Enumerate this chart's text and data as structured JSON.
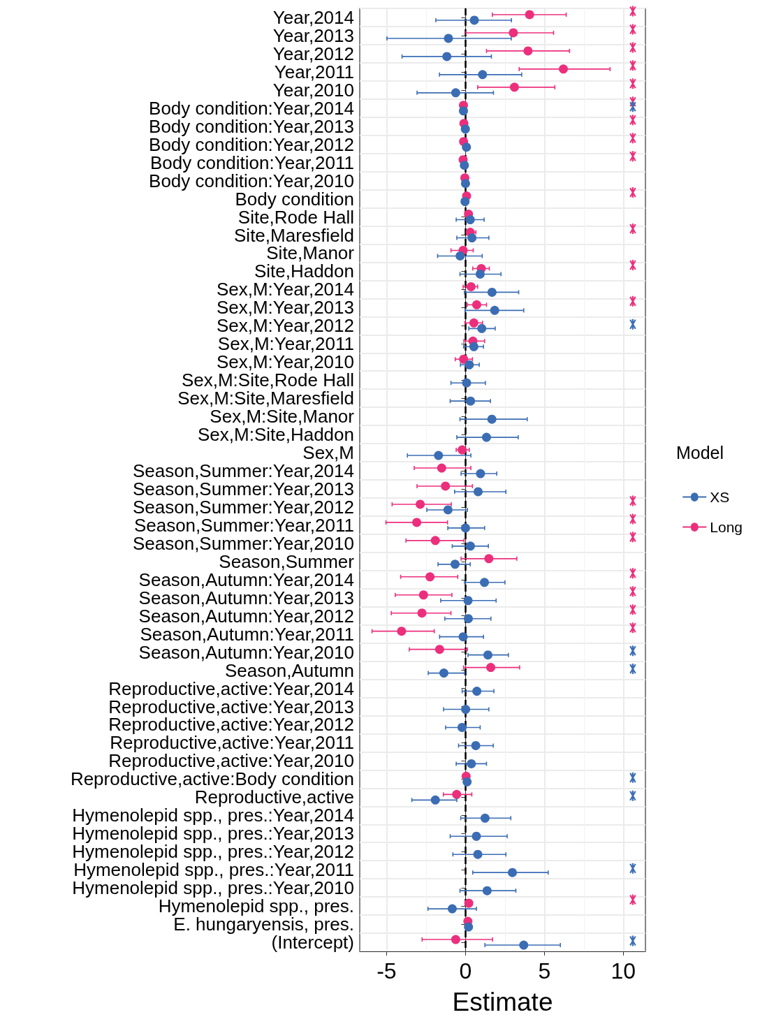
{
  "chart_data": {
    "type": "scatter",
    "orientation": "horizontal",
    "xlabel": "Estimate",
    "legend_title": "Model",
    "legend": "right",
    "grid": true,
    "marker": "circle",
    "xlim": [
      -6.7,
      11.4
    ],
    "xticks": [
      -5,
      0,
      5,
      10
    ],
    "ref_lines": [
      {
        "axis": "x",
        "value": 0,
        "color": "#000000",
        "line_style": "dashed"
      }
    ],
    "categories": [
      "Year,2014",
      "Year,2013",
      "Year,2012",
      "Year,2011",
      "Year,2010",
      "Body condition:Year,2014",
      "Body condition:Year,2013",
      "Body condition:Year,2012",
      "Body condition:Year,2011",
      "Body condition:Year,2010",
      "Body condition",
      "Site,Rode Hall",
      "Site,Maresfield",
      "Site,Manor",
      "Site,Haddon",
      "Sex,M:Year,2014",
      "Sex,M:Year,2013",
      "Sex,M:Year,2012",
      "Sex,M:Year,2011",
      "Sex,M:Year,2010",
      "Sex,M:Site,Rode Hall",
      "Sex,M:Site,Maresfield",
      "Sex,M:Site,Manor",
      "Sex,M:Site,Haddon",
      "Sex,M",
      "Season,Summer:Year,2014",
      "Season,Summer:Year,2013",
      "Season,Summer:Year,2012",
      "Season,Summer:Year,2011",
      "Season,Summer:Year,2010",
      "Season,Summer",
      "Season,Autumn:Year,2014",
      "Season,Autumn:Year,2013",
      "Season,Autumn:Year,2012",
      "Season,Autumn:Year,2011",
      "Season,Autumn:Year,2010",
      "Season,Autumn",
      "Reproductive,active:Year,2014",
      "Reproductive,active:Year,2013",
      "Reproductive,active:Year,2012",
      "Reproductive,active:Year,2011",
      "Reproductive,active:Year,2010",
      "Reproductive,active:Body condition",
      "Reproductive,active",
      "Hymenolepid spp., pres.:Year,2014",
      "Hymenolepid spp., pres.:Year,2013",
      "Hymenolepid spp., pres.:Year,2012",
      "Hymenolepid spp., pres.:Year,2011",
      "Hymenolepid spp., pres.:Year,2010",
      "Hymenolepid spp., pres.",
      "E. hungaryensis, pres.",
      "(Intercept)"
    ],
    "series": [
      {
        "name": "XS",
        "color": "#3b6db4",
        "values": [
          0.56,
          -1.08,
          -1.18,
          1.08,
          -0.62,
          -0.13,
          -0.01,
          0.06,
          -0.07,
          0.0,
          -0.03,
          0.3,
          0.41,
          -0.34,
          0.93,
          1.68,
          1.85,
          1.03,
          0.53,
          0.24,
          0.07,
          0.32,
          1.67,
          1.33,
          -1.71,
          0.95,
          0.8,
          -1.11,
          0.0,
          0.31,
          -0.66,
          1.2,
          0.16,
          0.18,
          -0.15,
          1.42,
          -1.37,
          0.72,
          0.01,
          -0.22,
          0.65,
          0.37,
          0.1,
          -1.91,
          1.24,
          0.69,
          0.78,
          2.97,
          1.37,
          -0.84,
          0.19,
          3.69
        ],
        "errors": [
          [
            -1.88,
            2.91
          ],
          [
            -4.98,
            2.9
          ],
          [
            -4.02,
            1.64
          ],
          [
            -1.65,
            3.56
          ],
          [
            -3.07,
            1.77
          ],
          null,
          null,
          null,
          null,
          null,
          null,
          [
            -0.59,
            1.18
          ],
          [
            -0.55,
            1.48
          ],
          [
            -1.77,
            1.06
          ],
          [
            -0.35,
            2.25
          ],
          [
            -0.07,
            3.37
          ],
          [
            -0.03,
            3.69
          ],
          [
            0.21,
            1.88
          ],
          [
            -0.12,
            1.14
          ],
          [
            -0.32,
            0.87
          ],
          [
            -0.92,
            1.26
          ],
          [
            -0.97,
            1.58
          ],
          [
            -0.35,
            3.91
          ],
          [
            -0.55,
            3.34
          ],
          [
            -3.68,
            0.34
          ],
          [
            -0.28,
            1.98
          ],
          [
            -0.69,
            2.56
          ],
          [
            -2.45,
            0.12
          ],
          [
            -1.12,
            1.21
          ],
          [
            -0.84,
            1.45
          ],
          [
            -1.74,
            0.3
          ],
          [
            -0.06,
            2.5
          ],
          [
            -1.57,
            1.94
          ],
          [
            -1.31,
            1.61
          ],
          [
            -1.64,
            1.14
          ],
          [
            0.16,
            2.72
          ],
          [
            -2.36,
            -0.06
          ],
          [
            -0.21,
            1.8
          ],
          [
            -1.39,
            1.48
          ],
          [
            -1.26,
            0.93
          ],
          [
            -0.44,
            1.76
          ],
          [
            -0.59,
            1.33
          ],
          null,
          [
            -3.4,
            -0.55
          ],
          [
            -0.3,
            2.87
          ],
          [
            -0.97,
            2.64
          ],
          [
            -0.8,
            2.56
          ],
          [
            0.46,
            5.24
          ],
          [
            -0.35,
            3.19
          ],
          [
            -2.38,
            0.69
          ],
          null,
          [
            1.23,
            6.01
          ]
        ]
      },
      {
        "name": "Long",
        "color": "#ec2f7c",
        "values": [
          4.06,
          3.03,
          3.96,
          6.2,
          3.1,
          -0.13,
          -0.1,
          -0.12,
          -0.15,
          -0.04,
          0.07,
          0.19,
          0.3,
          -0.15,
          1.0,
          0.35,
          0.71,
          0.53,
          0.47,
          -0.12,
          null,
          null,
          null,
          null,
          -0.21,
          -1.51,
          -1.27,
          -2.87,
          -3.09,
          -1.91,
          1.48,
          -2.25,
          -2.66,
          -2.76,
          -4.05,
          -1.64,
          1.6,
          null,
          null,
          null,
          null,
          null,
          0.04,
          -0.56,
          null,
          null,
          null,
          null,
          null,
          0.21,
          0.15,
          -0.62
        ],
        "errors": [
          [
            1.7,
            6.38
          ],
          [
            0.04,
            5.58
          ],
          [
            1.33,
            6.59
          ],
          [
            3.4,
            9.16
          ],
          [
            0.77,
            5.66
          ],
          null,
          null,
          null,
          null,
          null,
          null,
          null,
          [
            0.07,
            0.66
          ],
          [
            -0.92,
            0.49
          ],
          [
            0.46,
            1.51
          ],
          [
            -0.15,
            0.77
          ],
          [
            0.12,
            1.33
          ],
          [
            -0.04,
            1.08
          ],
          [
            -0.1,
            1.21
          ],
          [
            -0.65,
            0.44
          ],
          null,
          null,
          null,
          null,
          [
            -0.59,
            0.24
          ],
          [
            -3.25,
            0.34
          ],
          [
            -3.07,
            0.44
          ],
          [
            -4.65,
            -0.9
          ],
          [
            -5.04,
            -1.14
          ],
          [
            -3.77,
            -0.09
          ],
          [
            -0.28,
            3.25
          ],
          [
            -4.11,
            -0.49
          ],
          [
            -4.45,
            -0.86
          ],
          [
            -4.7,
            -0.92
          ],
          [
            -5.92,
            -1.98
          ],
          [
            -3.56,
            0.12
          ],
          [
            -0.12,
            3.43
          ],
          null,
          null,
          null,
          null,
          null,
          null,
          [
            -1.4,
            0.4
          ],
          null,
          null,
          null,
          null,
          null,
          null,
          null,
          [
            -2.75,
            1.71
          ]
        ]
      },
      {
        "color": "#ec2f7c",
        "marker": "cross",
        "values": [
          10.6,
          10.6,
          10.6,
          10.6,
          10.6,
          10.6,
          10.6,
          10.6,
          10.6,
          null,
          10.6,
          null,
          10.6,
          null,
          10.6,
          null,
          10.6,
          null,
          null,
          null,
          null,
          null,
          null,
          null,
          null,
          null,
          null,
          10.6,
          10.6,
          10.6,
          null,
          10.6,
          10.6,
          10.6,
          10.6,
          null,
          null,
          null,
          null,
          null,
          null,
          null,
          null,
          null,
          null,
          null,
          null,
          null,
          null,
          10.6,
          null,
          null
        ]
      },
      {
        "color": "#3b6db4",
        "marker": "cross",
        "values": [
          null,
          null,
          null,
          null,
          null,
          10.6,
          null,
          null,
          null,
          null,
          null,
          null,
          null,
          null,
          null,
          null,
          null,
          10.6,
          null,
          null,
          null,
          null,
          null,
          null,
          null,
          null,
          null,
          null,
          null,
          null,
          null,
          null,
          null,
          null,
          null,
          10.6,
          10.6,
          null,
          null,
          null,
          null,
          null,
          10.6,
          10.6,
          null,
          null,
          null,
          10.6,
          null,
          null,
          null,
          10.6
        ]
      }
    ]
  }
}
